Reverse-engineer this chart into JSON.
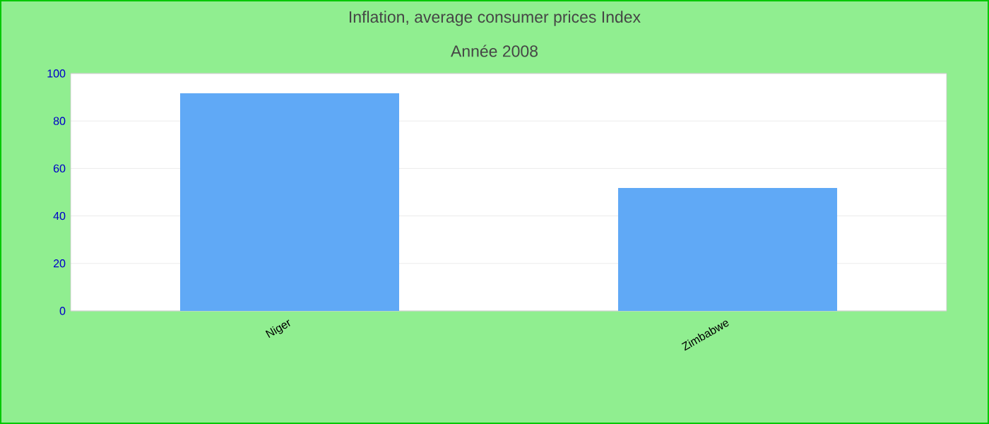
{
  "chart_data": {
    "type": "bar",
    "title": "Inflation, average consumer prices  Index",
    "subtitle": "Année 2008",
    "categories": [
      "Niger",
      "Zimbabwe"
    ],
    "values": [
      91.7,
      51.8
    ],
    "color": "#60a9f6",
    "ylim": [
      0,
      100
    ],
    "yticks": [
      0,
      20,
      40,
      60,
      80,
      100
    ],
    "grid": "y"
  }
}
